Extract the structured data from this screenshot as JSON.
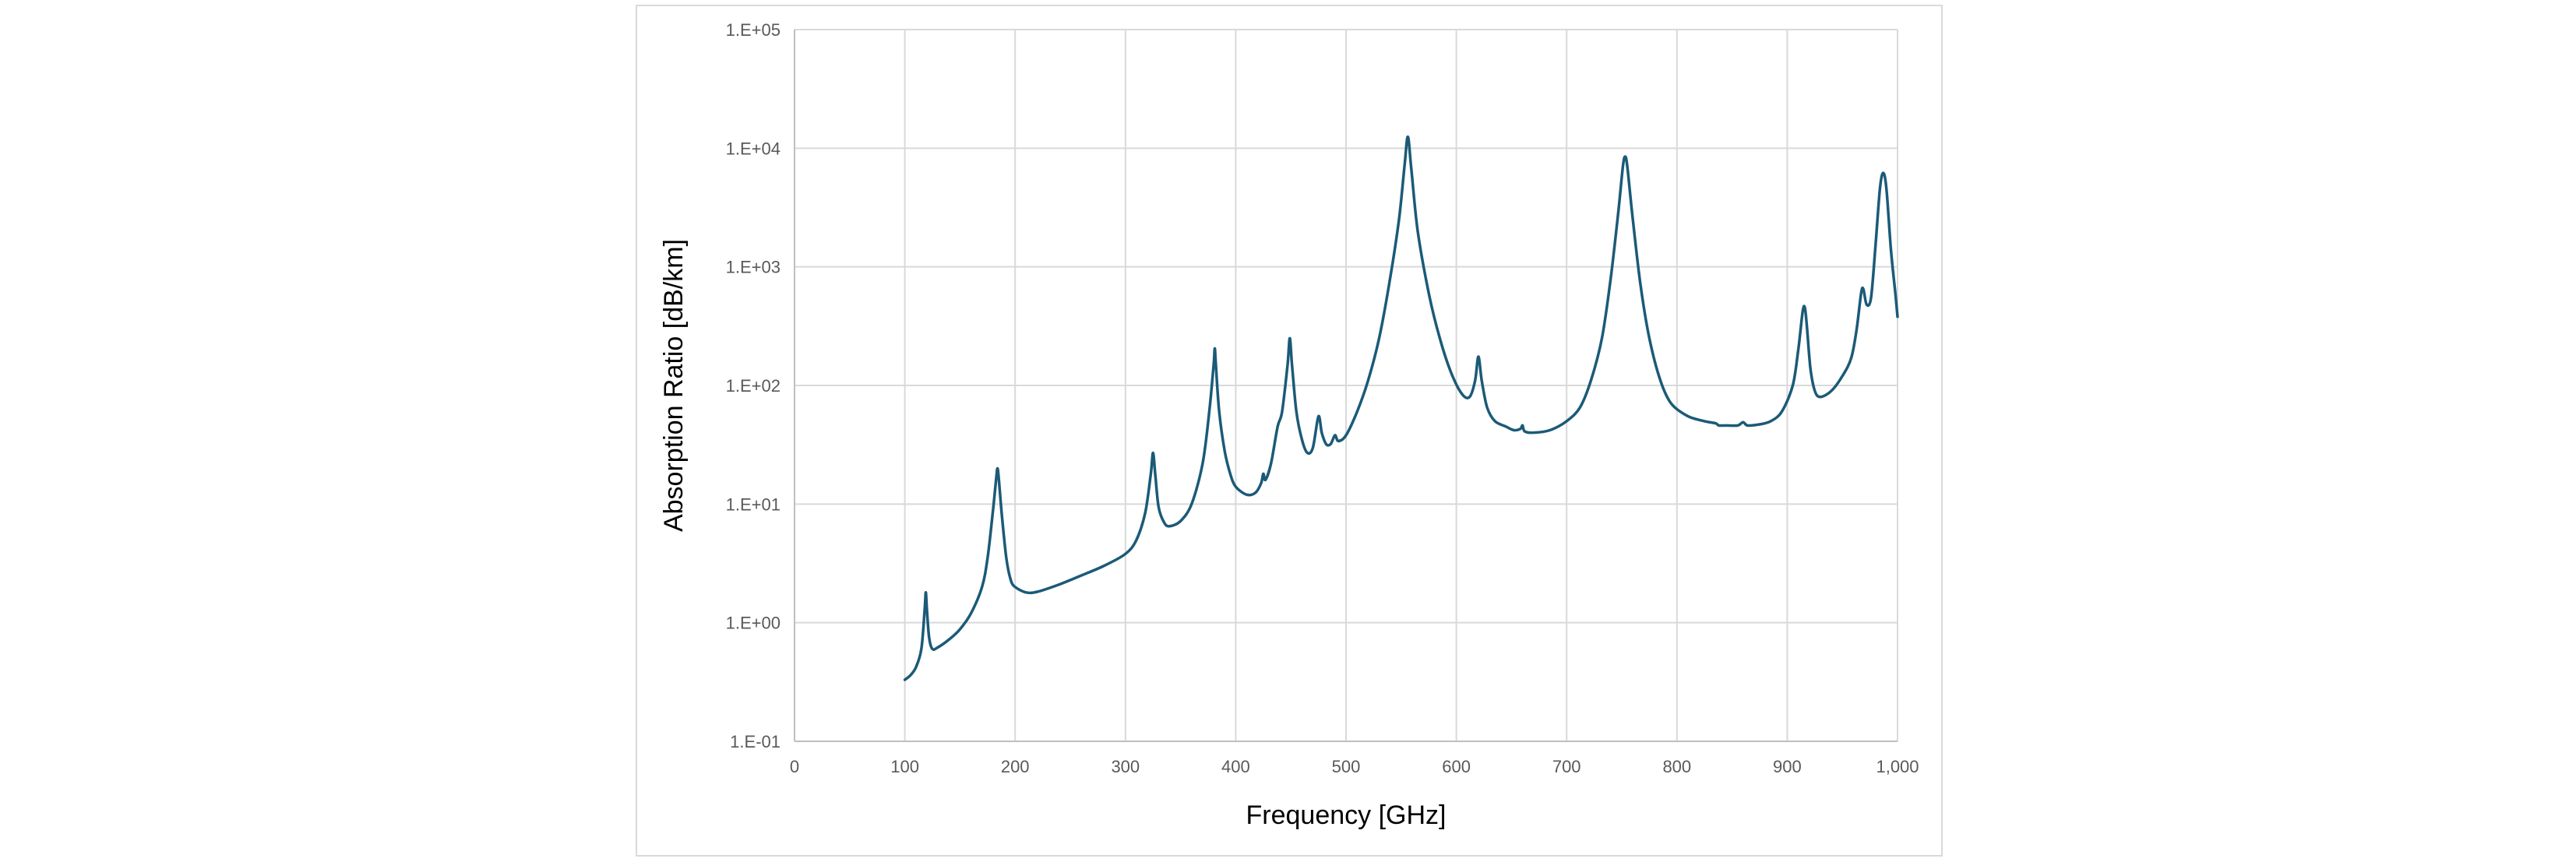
{
  "chart_data": {
    "type": "line",
    "title": "",
    "xlabel": "Frequency [GHz]",
    "ylabel": "Absorption Ratio [dB/km]",
    "xlim": [
      0,
      1000
    ],
    "ylim": [
      0.1,
      100000
    ],
    "yscale": "log",
    "xticks": [
      0,
      100,
      200,
      300,
      400,
      500,
      600,
      700,
      800,
      900,
      1000
    ],
    "xtick_labels": [
      "0",
      "100",
      "200",
      "300",
      "400",
      "500",
      "600",
      "700",
      "800",
      "900",
      "1,000"
    ],
    "yticks": [
      0.1,
      1,
      10,
      100,
      1000,
      10000,
      100000
    ],
    "ytick_labels": [
      "1.E-01",
      "1.E+00",
      "1.E+01",
      "1.E+02",
      "1.E+03",
      "1.E+04",
      "1.E+05"
    ],
    "grid": true,
    "legend": "none",
    "colors": {
      "line": "#1b5a78",
      "grid": "#d9d9d9",
      "axis": "#bfbfbf",
      "tick_text": "#595959",
      "frame": "#d9d9d9"
    },
    "series": [
      {
        "points": [
          [
            100,
            0.33
          ],
          [
            105,
            0.36
          ],
          [
            110,
            0.42
          ],
          [
            115,
            0.6
          ],
          [
            118,
            1.3
          ],
          [
            119,
            1.8
          ],
          [
            120,
            1.3
          ],
          [
            122,
            0.75
          ],
          [
            125,
            0.6
          ],
          [
            130,
            0.62
          ],
          [
            140,
            0.72
          ],
          [
            150,
            0.88
          ],
          [
            160,
            1.2
          ],
          [
            170,
            2.0
          ],
          [
            175,
            3.5
          ],
          [
            180,
            9.0
          ],
          [
            183,
            17.0
          ],
          [
            184,
            20.0
          ],
          [
            185,
            17.0
          ],
          [
            188,
            8.0
          ],
          [
            192,
            3.5
          ],
          [
            196,
            2.3
          ],
          [
            200,
            2.0
          ],
          [
            210,
            1.8
          ],
          [
            220,
            1.82
          ],
          [
            240,
            2.1
          ],
          [
            260,
            2.5
          ],
          [
            280,
            3.0
          ],
          [
            300,
            3.8
          ],
          [
            310,
            5.0
          ],
          [
            318,
            8.5
          ],
          [
            323,
            18.0
          ],
          [
            325,
            27.0
          ],
          [
            327,
            18.0
          ],
          [
            330,
            9.5
          ],
          [
            335,
            7.0
          ],
          [
            340,
            6.5
          ],
          [
            350,
            7.2
          ],
          [
            360,
            10.0
          ],
          [
            370,
            22.0
          ],
          [
            376,
            60.0
          ],
          [
            380,
            150.0
          ],
          [
            381,
            205.0
          ],
          [
            382,
            150.0
          ],
          [
            385,
            60.0
          ],
          [
            390,
            28.0
          ],
          [
            395,
            18.0
          ],
          [
            400,
            14.0
          ],
          [
            410,
            12.0
          ],
          [
            418,
            12.5
          ],
          [
            423,
            15.0
          ],
          [
            425,
            18.0
          ],
          [
            427,
            16.0
          ],
          [
            432,
            22.0
          ],
          [
            438,
            45.0
          ],
          [
            442,
            60.0
          ],
          [
            447,
            150.0
          ],
          [
            449,
            250.0
          ],
          [
            451,
            150.0
          ],
          [
            455,
            60.0
          ],
          [
            460,
            35.0
          ],
          [
            465,
            27.0
          ],
          [
            470,
            30.0
          ],
          [
            475,
            55.0
          ],
          [
            478,
            40.0
          ],
          [
            482,
            32.0
          ],
          [
            486,
            32.0
          ],
          [
            490,
            38.0
          ],
          [
            493,
            34.0
          ],
          [
            500,
            38.0
          ],
          [
            510,
            60.0
          ],
          [
            520,
            110.0
          ],
          [
            530,
            250.0
          ],
          [
            540,
            800.0
          ],
          [
            548,
            2500.0
          ],
          [
            553,
            7000.0
          ],
          [
            556,
            12500.0
          ],
          [
            559,
            7000.0
          ],
          [
            565,
            2000.0
          ],
          [
            575,
            600.0
          ],
          [
            585,
            250.0
          ],
          [
            595,
            130.0
          ],
          [
            605,
            85.0
          ],
          [
            612,
            80.0
          ],
          [
            617,
            110.0
          ],
          [
            620,
            175.0
          ],
          [
            623,
            110.0
          ],
          [
            628,
            65.0
          ],
          [
            635,
            50.0
          ],
          [
            645,
            45.0
          ],
          [
            652,
            42.0
          ],
          [
            658,
            43.0
          ],
          [
            660,
            46.0
          ],
          [
            662,
            41.0
          ],
          [
            670,
            40.0
          ],
          [
            685,
            42.0
          ],
          [
            700,
            50.0
          ],
          [
            712,
            65.0
          ],
          [
            722,
            110.0
          ],
          [
            732,
            250.0
          ],
          [
            740,
            800.0
          ],
          [
            747,
            3000.0
          ],
          [
            751,
            7000.0
          ],
          [
            753,
            8500.0
          ],
          [
            755,
            7000.0
          ],
          [
            760,
            2500.0
          ],
          [
            767,
            700.0
          ],
          [
            775,
            250.0
          ],
          [
            785,
            110.0
          ],
          [
            795,
            70.0
          ],
          [
            810,
            55.0
          ],
          [
            825,
            50.0
          ],
          [
            835,
            48.0
          ],
          [
            838,
            46.0
          ],
          [
            845,
            46.0
          ],
          [
            855,
            46.0
          ],
          [
            860,
            49.0
          ],
          [
            864,
            46.0
          ],
          [
            875,
            47.0
          ],
          [
            885,
            50.0
          ],
          [
            895,
            60.0
          ],
          [
            905,
            100.0
          ],
          [
            910,
            200.0
          ],
          [
            914,
            420.0
          ],
          [
            916,
            450.0
          ],
          [
            918,
            300.0
          ],
          [
            921,
            140.0
          ],
          [
            925,
            90.0
          ],
          [
            930,
            80.0
          ],
          [
            940,
            90.0
          ],
          [
            950,
            120.0
          ],
          [
            958,
            170.0
          ],
          [
            963,
            300.0
          ],
          [
            967,
            600.0
          ],
          [
            969,
            650.0
          ],
          [
            972,
            480.0
          ],
          [
            976,
            550.0
          ],
          [
            980,
            1500.0
          ],
          [
            984,
            4500.0
          ],
          [
            987,
            6200.0
          ],
          [
            990,
            4500.0
          ],
          [
            994,
            1400.0
          ],
          [
            998,
            600.0
          ],
          [
            1000,
            380.0
          ]
        ]
      }
    ]
  }
}
